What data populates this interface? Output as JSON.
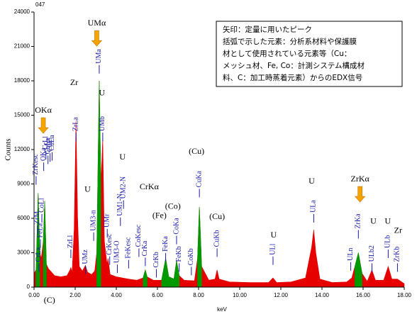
{
  "chart_data": {
    "type": "area",
    "corner_text": "047",
    "y_label": "Counts",
    "x_label": "keV",
    "xlim": [
      0,
      18
    ],
    "ylim": [
      0,
      24000
    ],
    "xticks": [
      {
        "value": 0,
        "label": "0.00"
      },
      {
        "value": 2,
        "label": "2.00"
      },
      {
        "value": 4,
        "label": "4.00"
      },
      {
        "value": 6,
        "label": "6.00"
      },
      {
        "value": 8,
        "label": "8.00"
      },
      {
        "value": 10,
        "label": "10.00"
      },
      {
        "value": 12,
        "label": "12.00"
      },
      {
        "value": 14,
        "label": "14.00"
      },
      {
        "value": 16,
        "label": "16.00"
      },
      {
        "value": 18,
        "label": "18.00"
      }
    ],
    "yticks": [
      0,
      3000,
      6000,
      9000,
      12000,
      15000,
      18000,
      21000,
      24000
    ],
    "x": [
      0,
      0.1,
      0.2,
      0.28,
      0.35,
      0.45,
      0.52,
      0.6,
      0.7,
      0.8,
      1.0,
      1.3,
      1.6,
      1.75,
      1.79,
      1.85,
      1.95,
      2.04,
      2.12,
      2.2,
      2.35,
      2.5,
      2.6,
      2.8,
      2.95,
      3.05,
      3.17,
      3.25,
      3.34,
      3.42,
      3.55,
      3.6,
      3.7,
      4.0,
      4.3,
      4.6,
      5.0,
      5.3,
      5.41,
      5.5,
      5.8,
      6.2,
      6.4,
      6.55,
      6.8,
      6.93,
      7.06,
      7.3,
      7.8,
      7.95,
      8.04,
      8.15,
      8.5,
      8.8,
      8.9,
      9.0,
      9.5,
      10.5,
      11.4,
      11.62,
      11.8,
      12.5,
      13.2,
      13.5,
      13.6,
      13.7,
      13.9,
      14.5,
      15.2,
      15.45,
      15.6,
      15.77,
      15.95,
      16.2,
      16.43,
      16.6,
      17.0,
      17.22,
      17.4,
      17.67,
      18
    ],
    "series": [
      {
        "color": "#e60000",
        "values": [
          1200,
          1500,
          8200,
          3000,
          2500,
          4000,
          7500,
          2000,
          1600,
          1400,
          1000,
          900,
          1000,
          1500,
          1700,
          1300,
          5000,
          14500,
          6000,
          1800,
          1400,
          1900,
          1300,
          1100,
          1400,
          3000,
          18000,
          9000,
          13000,
          4000,
          2000,
          2500,
          1100,
          900,
          800,
          700,
          600,
          800,
          1500,
          900,
          600,
          600,
          2500,
          900,
          700,
          2300,
          1000,
          600,
          550,
          2500,
          7000,
          1800,
          600,
          700,
          1500,
          700,
          450,
          400,
          400,
          800,
          400,
          450,
          800,
          3500,
          5000,
          3000,
          700,
          400,
          450,
          800,
          1800,
          3000,
          1200,
          500,
          1500,
          600,
          600,
          1800,
          700,
          700,
          300
        ]
      },
      {
        "color": "#009a00",
        "values": [
          null,
          1500,
          8200,
          3000,
          null,
          4000,
          7500,
          2000,
          null,
          null,
          null,
          null,
          null,
          null,
          null,
          null,
          null,
          null,
          null,
          null,
          null,
          null,
          null,
          null,
          null,
          3000,
          18000,
          9000,
          null,
          null,
          null,
          null,
          null,
          null,
          null,
          null,
          null,
          800,
          1500,
          900,
          null,
          600,
          2500,
          900,
          700,
          2300,
          1000,
          null,
          null,
          2500,
          7000,
          1800,
          null,
          null,
          null,
          null,
          null,
          null,
          null,
          null,
          null,
          null,
          null,
          null,
          null,
          null,
          null,
          null,
          null,
          null,
          1800,
          3000,
          1200,
          null,
          null,
          null,
          null,
          null,
          null,
          null,
          null
        ]
      }
    ],
    "peak_labels": [
      {
        "text": "ZrKesc",
        "x": 0.1,
        "y": 9800
      },
      {
        "text": "ZrM",
        "x": 0.17,
        "y": 5500
      },
      {
        "text": "CrLa",
        "x": 0.24,
        "y": 2200
      },
      {
        "text": "FeLa",
        "x": 0.31,
        "y": 4300
      },
      {
        "text": "CoLl",
        "x": 0.38,
        "y": 6500
      },
      {
        "text": "OKa",
        "x": 0.47,
        "y": 11000
      },
      {
        "text": "CrLl",
        "x": 0.58,
        "y": 12000
      },
      {
        "text": "CoLa",
        "x": 0.68,
        "y": 11600
      },
      {
        "text": "CuLl",
        "x": 0.78,
        "y": 11800
      },
      {
        "text": "CuLa",
        "x": 0.88,
        "y": 11900
      },
      {
        "text": "ZrLl",
        "x": 1.79,
        "y": 3400
      },
      {
        "text": "ZrLa",
        "x": 2.04,
        "y": 13600
      },
      {
        "text": "UMz",
        "x": 2.5,
        "y": 2000
      },
      {
        "text": "UM3-n",
        "x": 2.9,
        "y": 4900
      },
      {
        "text": "UMa",
        "x": 3.17,
        "y": 19500
      },
      {
        "text": "UMb",
        "x": 3.34,
        "y": 13600
      },
      {
        "text": "UMr",
        "x": 3.56,
        "y": 5200
      },
      {
        "text": "CrKesc",
        "x": 3.68,
        "y": 2800
      },
      {
        "text": "UM3-O",
        "x": 4.05,
        "y": 2100
      },
      {
        "text": "UM1-N",
        "x": 4.2,
        "y": 6200
      },
      {
        "text": "UM2-N",
        "x": 4.35,
        "y": 7700
      },
      {
        "text": "FeKesc",
        "x": 4.6,
        "y": 2500
      },
      {
        "text": "CoKesc",
        "x": 5.1,
        "y": 3500
      },
      {
        "text": "CrKa",
        "x": 5.41,
        "y": 2700
      },
      {
        "text": "CrKb",
        "x": 5.95,
        "y": 1700
      },
      {
        "text": "FeKa",
        "x": 6.4,
        "y": 3100
      },
      {
        "text": "CoKa",
        "x": 6.93,
        "y": 4600
      },
      {
        "text": "FeKb",
        "x": 7.06,
        "y": 2200
      },
      {
        "text": "CoKb",
        "x": 7.65,
        "y": 1900
      },
      {
        "text": "CuKa",
        "x": 8.04,
        "y": 8700
      },
      {
        "text": "CuKb",
        "x": 8.9,
        "y": 3500
      },
      {
        "text": "ULl",
        "x": 11.62,
        "y": 2800
      },
      {
        "text": "ULa",
        "x": 13.6,
        "y": 6500
      },
      {
        "text": "ULn",
        "x": 15.4,
        "y": 2300
      },
      {
        "text": "ZrKa",
        "x": 15.77,
        "y": 5100
      },
      {
        "text": "ULb2",
        "x": 16.43,
        "y": 2200
      },
      {
        "text": "ULb",
        "x": 17.22,
        "y": 3400
      },
      {
        "text": "ZrKb",
        "x": 17.67,
        "y": 2200
      }
    ],
    "annotations": [
      {
        "text": "OKα",
        "x": 0.45,
        "y": 15400,
        "arrow": true
      },
      {
        "text": "UMα",
        "x": 3.05,
        "y": 23000,
        "arrow": true
      },
      {
        "text": "Zr",
        "x": 1.95,
        "y": 17800
      },
      {
        "text": "U",
        "x": 3.3,
        "y": 16900
      },
      {
        "text": "U",
        "x": 2.6,
        "y": 8500
      },
      {
        "text": "U",
        "x": 4.3,
        "y": 11300
      },
      {
        "text": "CrKα",
        "x": 5.6,
        "y": 8700
      },
      {
        "text": "(Fe)",
        "x": 6.1,
        "y": 6200
      },
      {
        "text": "(Co)",
        "x": 6.75,
        "y": 7000
      },
      {
        "text": "(Cu)",
        "x": 7.9,
        "y": 11800
      },
      {
        "text": "(Cu)",
        "x": 8.9,
        "y": 6100
      },
      {
        "text": "U",
        "x": 11.65,
        "y": 4500
      },
      {
        "text": "U",
        "x": 13.5,
        "y": 9200
      },
      {
        "text": "ZrKα",
        "x": 15.85,
        "y": 9400,
        "arrow": true
      },
      {
        "text": "U",
        "x": 16.5,
        "y": 5700
      },
      {
        "text": "U",
        "x": 17.2,
        "y": 5700
      },
      {
        "text": "Zr",
        "x": 17.7,
        "y": 4900
      },
      {
        "text": "(C)",
        "x": 0.75,
        "y": -1200
      }
    ],
    "note_lines": [
      "矢印：定量に用いたピーク",
      "括弧で示した元素：分析系材料や保護膜",
      "材として使用されている元素等（Cu：",
      "メッシュ材、Fe, Co：計測システム構成材",
      "料、C：加工時蒸着元素）からのEDX信号"
    ]
  }
}
